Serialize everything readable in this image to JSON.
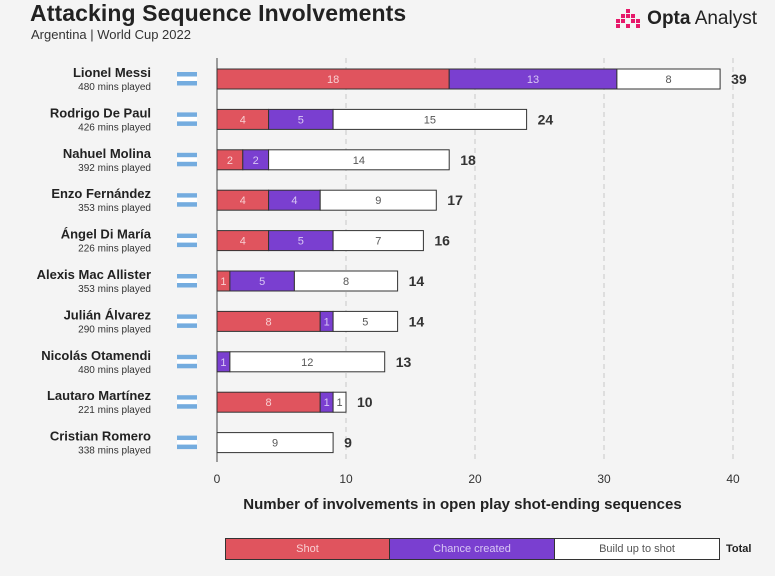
{
  "header": {
    "title": "Attacking Sequence Involvements",
    "subtitle": "Argentina | World Cup 2022",
    "brand_bold": "Opta",
    "brand_light": "Analyst"
  },
  "legend": {
    "shot": "Shot",
    "chance": "Chance created",
    "build": "Build up to shot",
    "total": "Total"
  },
  "colors": {
    "shot": "#e0545e",
    "chance": "#7a3fd0",
    "build": "#ffffff",
    "flag_blue": "#74acdf",
    "brand_pink": "#e6196a"
  },
  "chart_data": {
    "type": "bar",
    "orientation": "horizontal",
    "stacked": true,
    "title": "Attacking Sequence Involvements",
    "subtitle": "Argentina | World Cup 2022",
    "xlabel": "Number of involvements in open play shot-ending sequences",
    "ylabel": "",
    "xlim": [
      0,
      40
    ],
    "xticks": [
      0,
      10,
      20,
      30,
      40
    ],
    "grid": "vertical-dashed",
    "categories": [
      "Lionel Messi",
      "Rodrigo De Paul",
      "Nahuel Molina",
      "Enzo Fernández",
      "Ángel Di María",
      "Alexis Mac Allister",
      "Julián Álvarez",
      "Nicolás Otamendi",
      "Lautaro Martínez",
      "Cristian Romero"
    ],
    "minutes": [
      "480 mins played",
      "426 mins played",
      "392 mins played",
      "353 mins played",
      "226 mins played",
      "353 mins played",
      "290 mins played",
      "480 mins played",
      "221 mins played",
      "338 mins played"
    ],
    "series": [
      {
        "name": "Shot",
        "values": [
          18,
          4,
          2,
          4,
          4,
          1,
          8,
          0,
          8,
          0
        ]
      },
      {
        "name": "Chance created",
        "values": [
          13,
          5,
          2,
          4,
          5,
          5,
          1,
          1,
          1,
          0
        ]
      },
      {
        "name": "Build up to shot",
        "values": [
          8,
          15,
          14,
          9,
          7,
          8,
          5,
          12,
          1,
          9
        ]
      }
    ],
    "totals": [
      39,
      24,
      18,
      17,
      16,
      14,
      14,
      13,
      10,
      9
    ]
  }
}
